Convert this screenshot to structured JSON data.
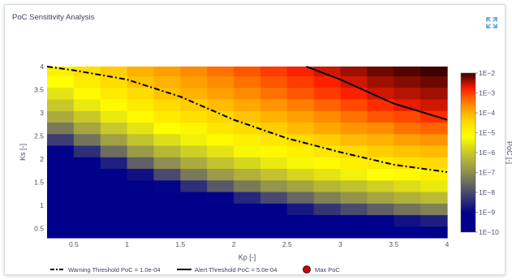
{
  "panel": {
    "title": "PoC Sensitivity Analysis",
    "expand_icon": "expand-icon"
  },
  "chart_data": {
    "type": "heatmap",
    "title": "PoC Sensitivity Analysis",
    "xlabel": "Kp [-]",
    "ylabel": "Ks [-]",
    "colorbar_label": "PoC [-]",
    "xlim": [
      0.25,
      4.0
    ],
    "ylim": [
      0.3,
      4.0
    ],
    "x_ticks": [
      0.5,
      1,
      1.5,
      2,
      2.5,
      3,
      3.5,
      4
    ],
    "x_tick_labels": [
      "0.5",
      "1",
      "1.5",
      "2",
      "2.5",
      "3",
      "3.5",
      "4"
    ],
    "y_ticks": [
      0.5,
      1,
      1.5,
      2,
      2.5,
      3,
      3.5,
      4
    ],
    "y_tick_labels": [
      "0.5",
      "1",
      "1.5",
      "2",
      "2.5",
      "3",
      "3.5",
      "4"
    ],
    "colorbar_ticks": [
      "1E−10",
      "1E−9",
      "1E−8",
      "1E−7",
      "1E−6",
      "1E−5",
      "1E−4",
      "1E−3",
      "1E−2"
    ],
    "colorbar_log_range": [
      -10,
      -2
    ],
    "colorscale": [
      {
        "t": 0.0,
        "color": "#00008b"
      },
      {
        "t": 0.12,
        "color": "#00008b"
      },
      {
        "t": 0.25,
        "color": "#4a4a6e"
      },
      {
        "t": 0.37,
        "color": "#8c8c52"
      },
      {
        "t": 0.5,
        "color": "#c8c82a"
      },
      {
        "t": 0.6,
        "color": "#ffff00"
      },
      {
        "t": 0.7,
        "color": "#ffd700"
      },
      {
        "t": 0.8,
        "color": "#ff8c00"
      },
      {
        "t": 0.9,
        "color": "#ff2000"
      },
      {
        "t": 1.0,
        "color": "#3c0000"
      }
    ],
    "x": [
      0.25,
      0.5,
      0.75,
      1.0,
      1.25,
      1.5,
      1.75,
      2.0,
      2.25,
      2.5,
      2.75,
      3.0,
      3.25,
      3.5,
      3.75,
      4.0
    ],
    "y": [
      0.3,
      0.55,
      0.8,
      1.05,
      1.3,
      1.55,
      1.8,
      2.05,
      2.3,
      2.55,
      2.8,
      3.05,
      3.3,
      3.55,
      3.8,
      4.0
    ],
    "z_log10": [
      [
        -10,
        -10,
        -10,
        -10,
        -10,
        -10,
        -10,
        -10,
        -10,
        -10,
        -10,
        -10,
        -10,
        -10,
        -10,
        -10
      ],
      [
        -10,
        -10,
        -10,
        -10,
        -10,
        -10,
        -10,
        -10,
        -10,
        -9.9,
        -9.7,
        -9.4,
        -9.1,
        -8.8,
        -8.6,
        -8.4
      ],
      [
        -10,
        -10,
        -10,
        -10,
        -10,
        -10,
        -9.8,
        -9.5,
        -9.1,
        -8.7,
        -8.3,
        -8.0,
        -7.7,
        -7.4,
        -7.2,
        -7.0
      ],
      [
        -10,
        -10,
        -10,
        -10,
        -9.8,
        -9.4,
        -9.0,
        -8.5,
        -8.0,
        -7.6,
        -7.2,
        -6.9,
        -6.6,
        -6.4,
        -6.2,
        -6.0
      ],
      [
        -10,
        -10,
        -10,
        -9.6,
        -9.0,
        -8.4,
        -7.8,
        -7.3,
        -6.9,
        -6.6,
        -6.3,
        -6.1,
        -5.9,
        -5.7,
        -5.5,
        -5.4
      ],
      [
        -10,
        -10,
        -9.6,
        -8.8,
        -8.0,
        -7.3,
        -6.8,
        -6.4,
        -6.1,
        -5.8,
        -5.6,
        -5.4,
        -5.2,
        -5.1,
        -4.9,
        -4.8
      ],
      [
        -10,
        -9.7,
        -8.6,
        -7.7,
        -7.0,
        -6.5,
        -6.1,
        -5.8,
        -5.5,
        -5.3,
        -5.1,
        -4.9,
        -4.8,
        -4.6,
        -4.5,
        -4.4
      ],
      [
        -9.4,
        -8.4,
        -7.5,
        -6.8,
        -6.3,
        -5.9,
        -5.6,
        -5.3,
        -5.1,
        -4.9,
        -4.7,
        -4.5,
        -4.3,
        -4.2,
        -4.1,
        -4.0
      ],
      [
        -8.2,
        -7.4,
        -6.7,
        -6.1,
        -5.7,
        -5.4,
        -5.1,
        -4.9,
        -4.7,
        -4.5,
        -4.3,
        -4.1,
        -4.0,
        -3.8,
        -3.7,
        -3.6
      ],
      [
        -7.3,
        -6.6,
        -6.0,
        -5.6,
        -5.2,
        -5.0,
        -4.7,
        -4.5,
        -4.3,
        -4.1,
        -3.9,
        -3.7,
        -3.6,
        -3.4,
        -3.3,
        -3.2
      ],
      [
        -6.5,
        -6.0,
        -5.5,
        -5.1,
        -4.8,
        -4.6,
        -4.4,
        -4.2,
        -4.0,
        -3.8,
        -3.6,
        -3.4,
        -3.2,
        -3.1,
        -2.9,
        -2.8
      ],
      [
        -6.0,
        -5.5,
        -5.1,
        -4.8,
        -4.5,
        -4.3,
        -4.1,
        -3.9,
        -3.7,
        -3.5,
        -3.3,
        -3.1,
        -2.9,
        -2.7,
        -2.6,
        -2.5
      ],
      [
        -5.6,
        -5.1,
        -4.8,
        -4.5,
        -4.2,
        -4.0,
        -3.8,
        -3.6,
        -3.4,
        -3.2,
        -3.0,
        -2.8,
        -2.6,
        -2.5,
        -2.4,
        -2.3
      ],
      [
        -5.2,
        -4.8,
        -4.5,
        -4.2,
        -4.0,
        -3.8,
        -3.6,
        -3.4,
        -3.2,
        -3.0,
        -2.8,
        -2.6,
        -2.4,
        -2.3,
        -2.2,
        -2.1
      ],
      [
        -4.9,
        -4.6,
        -4.3,
        -4.0,
        -3.8,
        -3.6,
        -3.4,
        -3.2,
        -3.0,
        -2.8,
        -2.6,
        -2.4,
        -2.2,
        -2.1,
        -2.0,
        -2.0
      ],
      [
        -4.8,
        -4.5,
        -4.2,
        -3.9,
        -3.7,
        -3.5,
        -3.3,
        -3.1,
        -2.9,
        -2.7,
        -2.5,
        -2.3,
        -2.1,
        -2.0,
        -2.0,
        -2.0
      ]
    ],
    "series": [
      {
        "name": "Warning Threshold PoC = 1.0e-04",
        "line_style": "dashdot",
        "color": "#000000",
        "x": [
          0.25,
          0.5,
          1.0,
          1.5,
          2.0,
          2.5,
          3.0,
          3.5,
          4.0
        ],
        "y": [
          4.0,
          3.92,
          3.72,
          3.35,
          2.85,
          2.45,
          2.15,
          1.88,
          1.72
        ]
      },
      {
        "name": "Alert Threshold PoC = 5.0e-04",
        "line_style": "solid",
        "color": "#000000",
        "x": [
          2.68,
          3.0,
          3.5,
          4.0
        ],
        "y": [
          4.0,
          3.72,
          3.2,
          2.85
        ]
      },
      {
        "name": "Max PoC",
        "line_style": "marker",
        "color": "#cc0000",
        "x": [],
        "y": []
      }
    ],
    "legend_position": "bottom"
  }
}
